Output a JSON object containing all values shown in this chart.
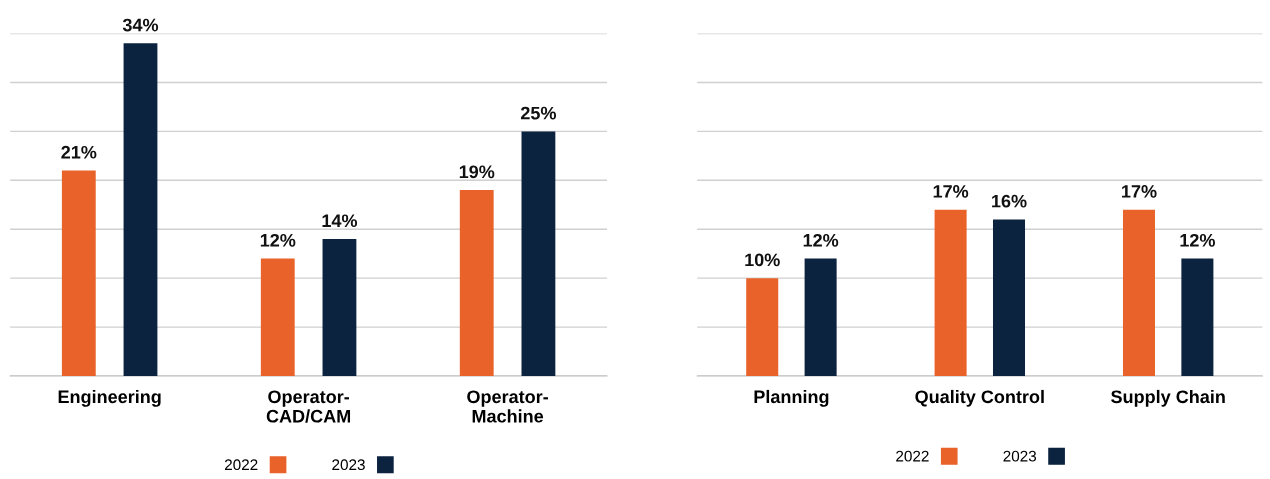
{
  "chart_data": [
    {
      "type": "bar",
      "categories": [
        "Engineering",
        "Operator-\nCAD/CAM",
        "Operator-\nMachine"
      ],
      "series": [
        {
          "name": "2022",
          "color": "#e8622a",
          "values": [
            21,
            12,
            19
          ],
          "value_labels": [
            "21%",
            "12%",
            "19%"
          ]
        },
        {
          "name": "2023",
          "color": "#0c2340",
          "values": [
            34,
            14,
            25
          ],
          "value_labels": [
            "34%",
            "14%",
            "25%"
          ]
        }
      ],
      "ylim": [
        0,
        35
      ],
      "yticks": [
        {
          "value": 0,
          "label": null
        },
        {
          "value": 5,
          "label": null
        },
        {
          "value": 10,
          "label": null
        },
        {
          "value": 15,
          "label": null
        },
        {
          "value": 20,
          "label": null
        },
        {
          "value": 25,
          "label": null
        },
        {
          "value": 30,
          "label": null
        },
        {
          "value": 35,
          "label": null
        }
      ],
      "tick_labels": "x",
      "grid": "y",
      "legend": "bottom"
    },
    {
      "type": "bar",
      "categories": [
        "Planning",
        "Quality Control",
        "Supply Chain"
      ],
      "series": [
        {
          "name": "2022",
          "color": "#e8622a",
          "values": [
            10,
            17,
            17
          ],
          "value_labels": [
            "10%",
            "17%",
            "17%"
          ]
        },
        {
          "name": "2023",
          "color": "#0c2340",
          "values": [
            12,
            16,
            12
          ],
          "value_labels": [
            "12%",
            "16%",
            "12%"
          ]
        }
      ],
      "ylim": [
        0,
        35
      ],
      "yticks": [
        {
          "value": 0,
          "label": null
        },
        {
          "value": 5,
          "label": null
        },
        {
          "value": 10,
          "label": null
        },
        {
          "value": 15,
          "label": null
        },
        {
          "value": 20,
          "label": null
        },
        {
          "value": 25,
          "label": null
        },
        {
          "value": 30,
          "label": null
        },
        {
          "value": 35,
          "label": null
        }
      ],
      "tick_labels": "x",
      "grid": "y",
      "legend": "bottom"
    }
  ]
}
